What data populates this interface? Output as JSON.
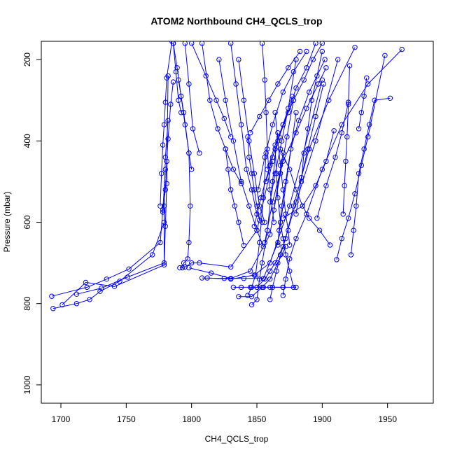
{
  "chart_data": {
    "type": "line",
    "title": "ATOM2 Northbound CH4_QCLS_trop",
    "xlabel": "CH4_QCLS_trop",
    "ylabel": "Pressure (mbar)",
    "xlim": [
      1685,
      1985
    ],
    "ylim": [
      1045,
      155
    ],
    "y_reversed": true,
    "xticks": [
      1700,
      1750,
      1800,
      1850,
      1900,
      1950
    ],
    "yticks": [
      200,
      400,
      600,
      800,
      1000
    ],
    "color": "#0000ff",
    "marker": "open-circle",
    "grid": false,
    "series": [
      {
        "x": [
          1694,
          1712,
          1722,
          1730,
          1745,
          1770,
          1779
        ],
        "y": [
          812,
          800,
          790,
          770,
          745,
          680,
          600
        ]
      },
      {
        "x": [
          1693,
          1720,
          1735,
          1752,
          1776,
          1778,
          1780
        ],
        "y": [
          782,
          760,
          740,
          715,
          650,
          570,
          470
        ]
      },
      {
        "x": [
          1712,
          1731,
          1751,
          1779,
          1779,
          1780,
          1782
        ],
        "y": [
          777,
          762,
          735,
          700,
          560,
          440,
          350
        ]
      },
      {
        "x": [
          1701,
          1719,
          1741,
          1779,
          1780,
          1781,
          1782
        ],
        "y": [
          803,
          748,
          758,
          705,
          610,
          505,
          240
        ]
      },
      {
        "x": [
          1776,
          1777,
          1778,
          1779,
          1780,
          1781,
          1785
        ],
        "y": [
          560,
          480,
          410,
          360,
          305,
          245,
          155
        ]
      },
      {
        "x": [
          1778,
          1780,
          1781,
          1782,
          1784,
          1786
        ],
        "y": [
          575,
          520,
          450,
          395,
          310,
          255
        ]
      },
      {
        "x": [
          1793,
          1794,
          1797,
          1798,
          1799,
          1798,
          1794,
          1790
        ],
        "y": [
          712,
          700,
          690,
          650,
          560,
          430,
          330,
          250
        ]
      },
      {
        "x": [
          1791,
          1795,
          1800,
          1806,
          1830,
          1850,
          1862
        ],
        "y": [
          712,
          710,
          700,
          700,
          710,
          620,
          450
        ]
      },
      {
        "x": [
          1798,
          1815,
          1830,
          1845,
          1860,
          1870
        ],
        "y": [
          712,
          725,
          738,
          720,
          630,
          430
        ]
      },
      {
        "x": [
          1808,
          1825,
          1840,
          1855,
          1866,
          1880
        ],
        "y": [
          737,
          738,
          738,
          738,
          650,
          330
        ]
      },
      {
        "x": [
          1812,
          1830,
          1848,
          1860,
          1875,
          1900
        ],
        "y": [
          737,
          740,
          730,
          700,
          560,
          250
        ]
      },
      {
        "x": [
          1836,
          1846,
          1854,
          1860,
          1866,
          1872
        ],
        "y": [
          783,
          783,
          760,
          740,
          700,
          660
        ]
      },
      {
        "x": [
          1846,
          1850,
          1852,
          1854,
          1858,
          1862,
          1866
        ],
        "y": [
          803,
          790,
          740,
          700,
          620,
          500,
          380
        ]
      },
      {
        "x": [
          1843,
          1846,
          1849,
          1852,
          1855,
          1857
        ],
        "y": [
          780,
          760,
          730,
          650,
          540,
          430
        ]
      },
      {
        "x": [
          1850,
          1856,
          1860,
          1864,
          1870,
          1880,
          1895,
          1912
        ],
        "y": [
          760,
          740,
          720,
          700,
          660,
          550,
          400,
          200
        ]
      },
      {
        "x": [
          1860,
          1862,
          1865,
          1868,
          1872,
          1878,
          1890,
          1905,
          1925
        ],
        "y": [
          790,
          760,
          720,
          680,
          640,
          560,
          420,
          300,
          170
        ]
      },
      {
        "x": [
          1870,
          1872,
          1875,
          1880,
          1888,
          1900,
          1915,
          1935,
          1961
        ],
        "y": [
          780,
          740,
          690,
          640,
          580,
          470,
          360,
          260,
          175
        ]
      },
      {
        "x": [
          1878,
          1875,
          1872,
          1870,
          1868,
          1866,
          1865,
          1864
        ],
        "y": [
          760,
          720,
          680,
          640,
          600,
          540,
          480,
          420
        ]
      },
      {
        "x": [
          1866,
          1867,
          1869,
          1872,
          1876,
          1882,
          1890,
          1902
        ],
        "y": [
          656,
          620,
          560,
          500,
          420,
          350,
          280,
          200
        ]
      },
      {
        "x": [
          1875,
          1874,
          1872,
          1870,
          1868,
          1866,
          1864
        ],
        "y": [
          656,
          620,
          580,
          520,
          460,
          400,
          330
        ]
      },
      {
        "x": [
          1906,
          1898,
          1890,
          1885,
          1880,
          1875,
          1868
        ],
        "y": [
          656,
          620,
          590,
          560,
          520,
          470,
          420
        ]
      },
      {
        "x": [
          1911,
          1915,
          1920,
          1925,
          1930,
          1935,
          1948
        ],
        "y": [
          692,
          640,
          590,
          530,
          460,
          390,
          190
        ]
      },
      {
        "x": [
          1922,
          1924,
          1926,
          1928,
          1932,
          1936,
          1940,
          1952
        ],
        "y": [
          680,
          620,
          560,
          480,
          420,
          360,
          300,
          295
        ]
      },
      {
        "x": [
          1840,
          1836,
          1833,
          1830,
          1828,
          1826
        ],
        "y": [
          657,
          600,
          560,
          520,
          470,
          420
        ]
      },
      {
        "x": [
          1852,
          1850,
          1848,
          1846,
          1844,
          1843
        ],
        "y": [
          595,
          560,
          520,
          480,
          440,
          390
        ]
      },
      {
        "x": [
          1870,
          1885,
          1895,
          1903,
          1909
        ],
        "y": [
          590,
          560,
          510,
          450,
          375
        ]
      },
      {
        "x": [
          1896,
          1903,
          1910,
          1915,
          1920
        ],
        "y": [
          590,
          510,
          440,
          380,
          305
        ]
      },
      {
        "x": [
          1916,
          1917,
          1918,
          1919,
          1920,
          1921
        ],
        "y": [
          580,
          510,
          450,
          390,
          310,
          215
        ]
      },
      {
        "x": [
          1928,
          1930,
          1932,
          1934
        ],
        "y": [
          370,
          330,
          290,
          245
        ]
      },
      {
        "x": [
          1857,
          1862,
          1867,
          1874,
          1880,
          1888,
          1895
        ],
        "y": [
          500,
          440,
          390,
          330,
          270,
          220,
          160
        ]
      },
      {
        "x": [
          1858,
          1864,
          1870,
          1878,
          1886,
          1893,
          1900
        ],
        "y": [
          470,
          410,
          360,
          300,
          250,
          200,
          160
        ]
      },
      {
        "x": [
          1845,
          1852,
          1859,
          1866,
          1874,
          1883
        ],
        "y": [
          380,
          340,
          300,
          260,
          220,
          180
        ]
      },
      {
        "x": [
          1860,
          1864,
          1869,
          1874,
          1880
        ],
        "y": [
          550,
          480,
          400,
          320,
          200
        ]
      },
      {
        "x": [
          1863,
          1868,
          1873,
          1878
        ],
        "y": [
          570,
          480,
          390,
          300
        ]
      },
      {
        "x": [
          1884,
          1886,
          1889,
          1892,
          1896,
          1900
        ],
        "y": [
          500,
          430,
          370,
          300,
          240,
          180
        ]
      },
      {
        "x": [
          1880,
          1884,
          1889,
          1895,
          1901
        ],
        "y": [
          580,
          490,
          420,
          340,
          260
        ]
      },
      {
        "x": [
          1856,
          1862,
          1870,
          1880,
          1888,
          1897,
          1903
        ],
        "y": [
          650,
          550,
          450,
          380,
          320,
          260,
          220
        ]
      },
      {
        "x": [
          1848,
          1853,
          1860,
          1870,
          1877
        ],
        "y": [
          610,
          540,
          460,
          360,
          290
        ]
      },
      {
        "x": [
          1851,
          1856,
          1862,
          1870,
          1878,
          1888
        ],
        "y": [
          520,
          440,
          360,
          280,
          230,
          180
        ]
      },
      {
        "x": [
          1808,
          1814,
          1820,
          1826,
          1832,
          1838
        ],
        "y": [
          160,
          300,
          370,
          420,
          470,
          505
        ]
      },
      {
        "x": [
          1800,
          1811,
          1819,
          1825,
          1830
        ],
        "y": [
          160,
          240,
          300,
          345,
          390
        ]
      },
      {
        "x": [
          1830,
          1834,
          1838,
          1842,
          1846,
          1850,
          1854
        ],
        "y": [
          160,
          260,
          360,
          470,
          520,
          580,
          600
        ]
      },
      {
        "x": [
          1821,
          1826,
          1832,
          1838,
          1844,
          1850,
          1855
        ],
        "y": [
          200,
          300,
          400,
          500,
          560,
          620,
          660
        ]
      },
      {
        "x": [
          1836,
          1840,
          1844,
          1848,
          1852,
          1856
        ],
        "y": [
          200,
          300,
          400,
          480,
          560,
          600
        ]
      },
      {
        "x": [
          1854,
          1856,
          1857,
          1858,
          1860,
          1863
        ],
        "y": [
          160,
          250,
          330,
          420,
          520,
          600
        ]
      },
      {
        "x": [
          1786,
          1789,
          1792,
          1795,
          1798,
          1800
        ],
        "y": [
          160,
          220,
          290,
          360,
          430,
          470
        ]
      },
      {
        "x": [
          1795,
          1798,
          1801,
          1806
        ],
        "y": [
          160,
          260,
          370,
          430
        ]
      },
      {
        "x": [
          1786,
          1788,
          1790,
          1792
        ],
        "y": [
          160,
          230,
          300,
          330
        ]
      },
      {
        "x": [
          1870,
          1855,
          1845,
          1838,
          1832
        ],
        "y": [
          760,
          760,
          760,
          760,
          760
        ]
      },
      {
        "x": [
          1880,
          1870,
          1860,
          1850
        ],
        "y": [
          760,
          760,
          760,
          760
        ]
      }
    ]
  }
}
